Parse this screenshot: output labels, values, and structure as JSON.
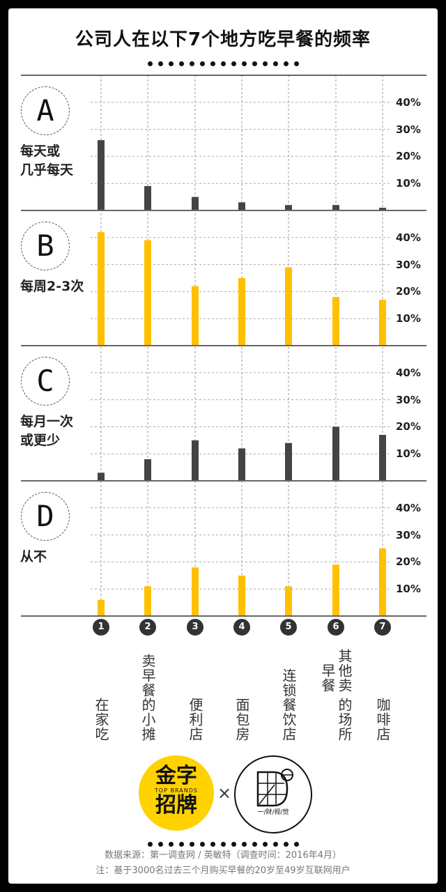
{
  "title": "公司人在以下7个地方吃早餐的频率",
  "chart_data": {
    "type": "bar",
    "categories": [
      "在家吃",
      "卖早餐的小摊",
      "便利店",
      "面包房",
      "连锁餐饮店",
      "其他的卖早餐场所",
      "咖啡店"
    ],
    "category_numbers": [
      "1",
      "2",
      "3",
      "4",
      "5",
      "6",
      "7"
    ],
    "category_lines": [
      [
        "在家吃"
      ],
      [
        "卖早餐的小摊"
      ],
      [
        "便利店"
      ],
      [
        "面包房"
      ],
      [
        "连锁餐饮店"
      ],
      [
        "其他卖早餐",
        "的场所"
      ],
      [
        "咖啡店"
      ]
    ],
    "ylim": [
      0,
      40
    ],
    "yticks": [
      "10%",
      "20%",
      "30%",
      "40%"
    ],
    "panels": [
      {
        "letter": "A",
        "label": "每天或\n几乎每天",
        "color": "#444444",
        "values": [
          26,
          9,
          5,
          3,
          2,
          2,
          1
        ]
      },
      {
        "letter": "B",
        "label": "每周2-3次",
        "color": "#ffc000",
        "values": [
          42,
          39,
          22,
          25,
          29,
          18,
          17
        ]
      },
      {
        "letter": "C",
        "label": "每月一次\n或更少",
        "color": "#444444",
        "values": [
          3,
          8,
          15,
          12,
          14,
          20,
          17
        ]
      },
      {
        "letter": "D",
        "label": "从不",
        "color": "#ffc000",
        "values": [
          6,
          11,
          18,
          15,
          11,
          19,
          25
        ]
      }
    ],
    "grid": true
  },
  "logos": {
    "brand_a_line1": "金字",
    "brand_a_small": "TOP BRANDS",
    "brand_a_line2": "招牌",
    "times": "×",
    "brand_b_text": "一/财/视/觉"
  },
  "footer": {
    "source": "数据来源：第一调查网 / 英敏特（调查时间：2016年4月）",
    "note": "注：基于3000名过去三个月购买早餐的20岁至49岁互联网用户"
  }
}
